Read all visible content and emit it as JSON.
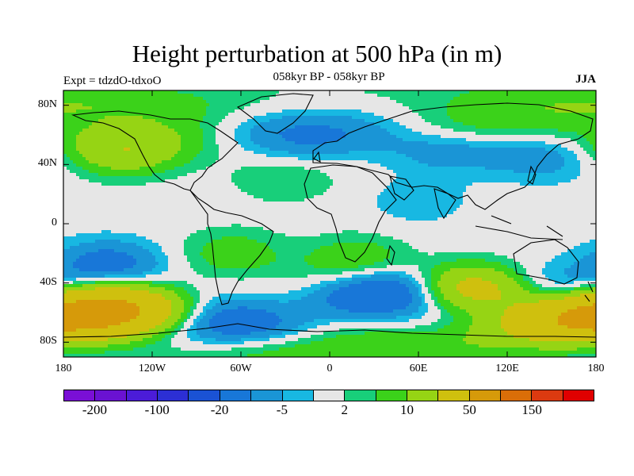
{
  "title": "Height perturbation at 500 hPa (in m)",
  "subtitle": "058kyr BP - 058kyr BP",
  "left_label": "Expt = tdzdO-tdxoO",
  "right_label": "JJA",
  "y_ticks": [
    "80N",
    "40N",
    "0",
    "40S",
    "80S"
  ],
  "x_ticks": [
    "180",
    "120W",
    "60W",
    "0",
    "60E",
    "120E",
    "180"
  ],
  "colorbar": {
    "colors": [
      "#7a0fd6",
      "#6a12d2",
      "#4b1cd8",
      "#2c2fd4",
      "#1a52d4",
      "#1877d8",
      "#1a95d6",
      "#18b8e2",
      "#e6e6e6",
      "#18cf7a",
      "#3bd21a",
      "#96d414",
      "#cfc00e",
      "#d69a0a",
      "#da6e08",
      "#dc3a10",
      "#e00000"
    ],
    "labels": [
      "-200",
      "-100",
      "-20",
      "-5",
      "2",
      "10",
      "50",
      "150"
    ]
  },
  "chart_data": {
    "type": "heatmap",
    "title": "Height perturbation at 500 hPa (in m)",
    "subtitle": "058kyr BP - 058kyr BP",
    "xlabel": "",
    "ylabel": "",
    "xlim": [
      -180,
      180
    ],
    "ylim": [
      -90,
      90
    ],
    "x_ticks": [
      -180,
      -120,
      -60,
      0,
      60,
      120,
      180
    ],
    "y_ticks": [
      80,
      40,
      0,
      -40,
      -80
    ],
    "levels": [
      -200,
      -150,
      -100,
      -50,
      -20,
      -10,
      -5,
      -2,
      2,
      5,
      10,
      20,
      50,
      100,
      150,
      200
    ],
    "features": [
      {
        "lon": -145,
        "lat": -58,
        "value": 55
      },
      {
        "lon": -80,
        "lat": -68,
        "value": -25
      },
      {
        "lon": -150,
        "lat": -28,
        "value": -15
      },
      {
        "lon": 40,
        "lat": -48,
        "value": -25
      },
      {
        "lon": 97,
        "lat": -45,
        "value": 30
      },
      {
        "lon": 148,
        "lat": -45,
        "value": -10
      },
      {
        "lon": 172,
        "lat": -65,
        "value": 40
      },
      {
        "lon": -65,
        "lat": -20,
        "value": 8
      },
      {
        "lon": 18,
        "lat": -25,
        "value": 10
      },
      {
        "lon": -15,
        "lat": 60,
        "value": -12
      },
      {
        "lon": 80,
        "lat": 50,
        "value": -8
      },
      {
        "lon": 145,
        "lat": 45,
        "value": -8
      },
      {
        "lon": -140,
        "lat": 50,
        "value": 20
      },
      {
        "lon": -115,
        "lat": 75,
        "value": 7
      },
      {
        "lon": -30,
        "lat": 30,
        "value": 5
      },
      {
        "lon": 105,
        "lat": 65,
        "value": 8
      },
      {
        "lon": 150,
        "lat": 82,
        "value": 6
      },
      {
        "lon": 60,
        "lat": 15,
        "value": -4
      },
      {
        "lon": 0,
        "lat": -82,
        "value": 12
      }
    ]
  }
}
